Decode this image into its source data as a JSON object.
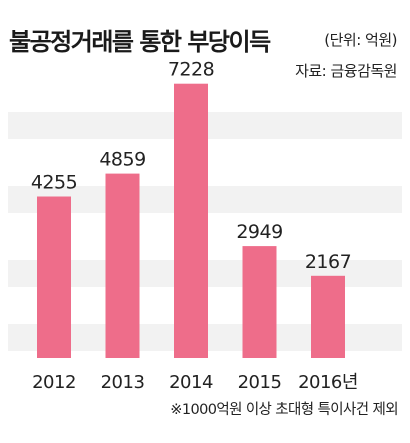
{
  "header": {
    "title": "불공정거래를 통한 부당이득",
    "unit": "(단위: 억원)",
    "source": "자료: 금융감독원"
  },
  "footnote": "※1000억원 이상 초대형 특이사건 제외",
  "colors": {
    "bar": "#ee6d8a",
    "band": "#f2f2f2"
  },
  "chart_data": {
    "type": "bar",
    "title": "불공정거래를 통한 부당이득",
    "categories": [
      "2012",
      "2013",
      "2014",
      "2015",
      "2016년"
    ],
    "values": [
      4255,
      4859,
      7228,
      2949,
      2167
    ],
    "value_labels": [
      "4255",
      "4859",
      "7228",
      "2949",
      "2167"
    ],
    "xlabel": "",
    "ylabel": "",
    "ylim": [
      0,
      7800
    ],
    "grid": "horizontal-bands",
    "legend": "none"
  }
}
